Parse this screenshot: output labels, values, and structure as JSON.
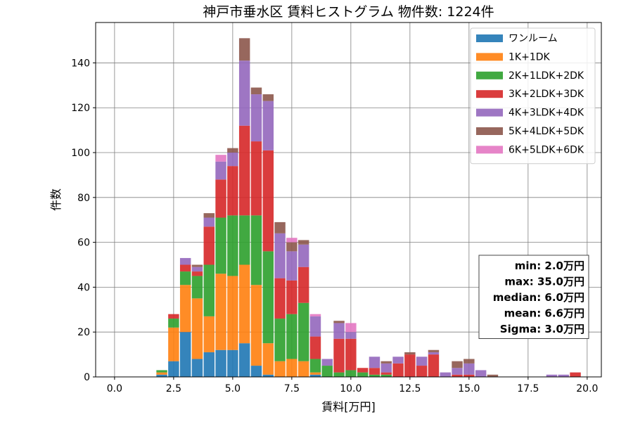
{
  "chart_data": {
    "type": "bar",
    "stacked": true,
    "title": "神戸市垂水区 賃料ヒストグラム 物件数: 1224件",
    "xlabel": "賃料[万円]",
    "ylabel": "件数",
    "xlim": [
      -0.8,
      20.6
    ],
    "ylim": [
      0,
      158
    ],
    "xticks": [
      0.0,
      2.5,
      5.0,
      7.5,
      10.0,
      12.5,
      15.0,
      17.5,
      20.0
    ],
    "xtick_labels": [
      "0.0",
      "2.5",
      "5.0",
      "7.5",
      "10.0",
      "12.5",
      "15.0",
      "17.5",
      "20.0"
    ],
    "yticks": [
      0,
      20,
      40,
      60,
      80,
      100,
      120,
      140
    ],
    "ytick_labels": [
      "0",
      "20",
      "40",
      "60",
      "80",
      "100",
      "120",
      "140"
    ],
    "grid": true,
    "legend_position": "top-right",
    "bin_width": 0.5,
    "x": [
      2.0,
      2.5,
      3.0,
      3.5,
      4.0,
      4.5,
      5.0,
      5.5,
      6.0,
      6.5,
      7.0,
      7.5,
      8.0,
      8.5,
      9.0,
      9.5,
      10.0,
      10.5,
      11.0,
      11.5,
      12.0,
      12.5,
      13.0,
      13.5,
      14.0,
      14.5,
      15.0,
      15.5,
      16.0,
      18.5,
      19.0,
      19.5
    ],
    "series": [
      {
        "name": "ワンルーム",
        "color": "#1f77b4",
        "values": [
          1,
          7,
          20,
          8,
          11,
          12,
          12,
          15,
          5,
          1,
          0,
          0,
          0,
          1,
          0,
          0,
          0,
          0,
          0,
          0,
          0,
          0,
          0,
          0,
          0,
          0,
          0,
          0,
          0,
          0,
          0,
          0
        ]
      },
      {
        "name": "1K+1DK",
        "color": "#ff7f0e",
        "values": [
          1,
          15,
          21,
          27,
          16,
          34,
          33,
          35,
          36,
          14,
          7,
          8,
          7,
          1,
          0,
          0,
          0,
          0,
          0,
          0,
          0,
          0,
          0,
          0,
          0,
          0,
          0,
          0,
          0,
          0,
          0,
          0
        ]
      },
      {
        "name": "2K+1LDK+2DK",
        "color": "#2ca02c",
        "values": [
          1,
          4,
          6,
          10,
          23,
          25,
          27,
          22,
          31,
          41,
          19,
          20,
          26,
          6,
          5,
          2,
          3,
          2,
          1,
          1,
          0,
          0,
          0,
          0,
          0,
          0,
          0,
          0,
          0,
          0,
          0,
          0
        ]
      },
      {
        "name": "3K+2LDK+3DK",
        "color": "#d62728",
        "values": [
          0,
          2,
          3,
          2,
          17,
          17,
          22,
          40,
          33,
          45,
          18,
          15,
          16,
          10,
          0,
          15,
          14,
          2,
          3,
          1,
          6,
          10,
          5,
          10,
          0,
          1,
          1,
          0,
          0,
          0,
          0,
          2
        ]
      },
      {
        "name": "4K+3LDK+4DK",
        "color": "#9467bd",
        "values": [
          0,
          0,
          3,
          2,
          4,
          8,
          6,
          29,
          21,
          22,
          20,
          13,
          10,
          9,
          3,
          7,
          3,
          0,
          5,
          4,
          3,
          0,
          4,
          1,
          2,
          3,
          5,
          3,
          0,
          1,
          1,
          0
        ]
      },
      {
        "name": "5K+4LDK+5DK",
        "color": "#8c564b",
        "values": [
          0,
          0,
          0,
          1,
          2,
          0,
          2,
          10,
          3,
          3,
          5,
          4,
          2,
          0,
          0,
          1,
          0,
          0,
          0,
          1,
          0,
          1,
          0,
          1,
          0,
          3,
          2,
          0,
          1,
          0,
          0,
          0
        ]
      },
      {
        "name": "6K+5LDK+6DK",
        "color": "#e377c2",
        "values": [
          0,
          0,
          0,
          0,
          0,
          3,
          0,
          0,
          0,
          0,
          0,
          2,
          0,
          1,
          0,
          0,
          4,
          0,
          0,
          0,
          0,
          0,
          0,
          0,
          0,
          0,
          0,
          0,
          0,
          0,
          0,
          0
        ]
      }
    ],
    "stats": [
      "min: 2.0万円",
      "max: 35.0万円",
      "median: 6.0万円",
      "mean: 6.6万円",
      "Sigma: 3.0万円"
    ]
  }
}
